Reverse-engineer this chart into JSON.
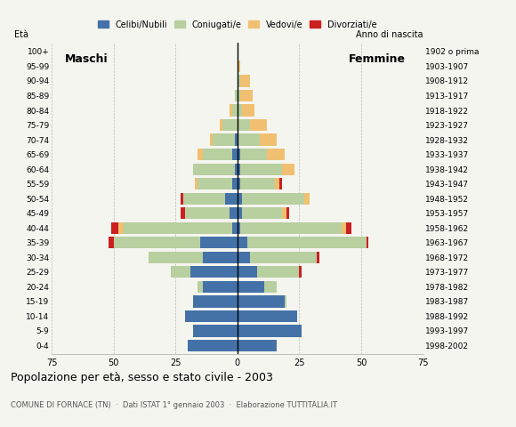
{
  "age_groups": [
    "0-4",
    "5-9",
    "10-14",
    "15-19",
    "20-24",
    "25-29",
    "30-34",
    "35-39",
    "40-44",
    "45-49",
    "50-54",
    "55-59",
    "60-64",
    "65-69",
    "70-74",
    "75-79",
    "80-84",
    "85-89",
    "90-94",
    "95-99",
    "100+"
  ],
  "birth_years": [
    "1998-2002",
    "1993-1997",
    "1988-1992",
    "1983-1987",
    "1978-1982",
    "1973-1977",
    "1968-1972",
    "1963-1967",
    "1958-1962",
    "1953-1957",
    "1948-1952",
    "1943-1947",
    "1938-1942",
    "1933-1937",
    "1928-1932",
    "1923-1927",
    "1918-1922",
    "1913-1917",
    "1908-1912",
    "1903-1907",
    "1902 o prima"
  ],
  "males": {
    "celibe": [
      20,
      18,
      21,
      18,
      14,
      19,
      14,
      15,
      2,
      3,
      5,
      2,
      1,
      2,
      1,
      0,
      0,
      0,
      0,
      0,
      0
    ],
    "coniugato": [
      0,
      0,
      0,
      0,
      2,
      8,
      22,
      35,
      44,
      18,
      17,
      14,
      17,
      12,
      9,
      6,
      2,
      1,
      0,
      0,
      0
    ],
    "vedovo": [
      0,
      0,
      0,
      0,
      0,
      0,
      0,
      0,
      2,
      0,
      0,
      1,
      0,
      2,
      1,
      1,
      1,
      0,
      0,
      0,
      0
    ],
    "divorziato": [
      0,
      0,
      0,
      0,
      0,
      0,
      0,
      2,
      3,
      2,
      1,
      0,
      0,
      0,
      0,
      0,
      0,
      0,
      0,
      0,
      0
    ]
  },
  "females": {
    "nubile": [
      16,
      26,
      24,
      19,
      11,
      8,
      5,
      4,
      1,
      2,
      2,
      1,
      1,
      1,
      0,
      0,
      0,
      0,
      0,
      0,
      0
    ],
    "coniugata": [
      0,
      0,
      0,
      1,
      5,
      17,
      27,
      48,
      41,
      16,
      25,
      14,
      17,
      11,
      9,
      5,
      2,
      1,
      1,
      0,
      0
    ],
    "vedova": [
      0,
      0,
      0,
      0,
      0,
      0,
      0,
      0,
      2,
      2,
      2,
      2,
      5,
      7,
      7,
      7,
      5,
      5,
      4,
      1,
      0
    ],
    "divorziata": [
      0,
      0,
      0,
      0,
      0,
      1,
      1,
      1,
      2,
      1,
      0,
      1,
      0,
      0,
      0,
      0,
      0,
      0,
      0,
      0,
      0
    ]
  },
  "colors": {
    "celibe": "#4472a8",
    "coniugato": "#b8cfa0",
    "vedovo": "#f0c070",
    "divorziato": "#cc2020"
  },
  "xlim": 75,
  "title": "Popolazione per età, sesso e stato civile - 2003",
  "subtitle": "COMUNE DI FORNACE (TN)  ·  Dati ISTAT 1° gennaio 2003  ·  Elaborazione TUTTITALIA.IT",
  "legend_labels": [
    "Celibi/Nubili",
    "Coniugati/e",
    "Vedovi/e",
    "Divorziati/e"
  ],
  "background_color": "#f5f5f0",
  "eta_label": "Età",
  "anno_label": "Anno di nascita",
  "maschi_label": "Maschi",
  "femmine_label": "Femmine"
}
